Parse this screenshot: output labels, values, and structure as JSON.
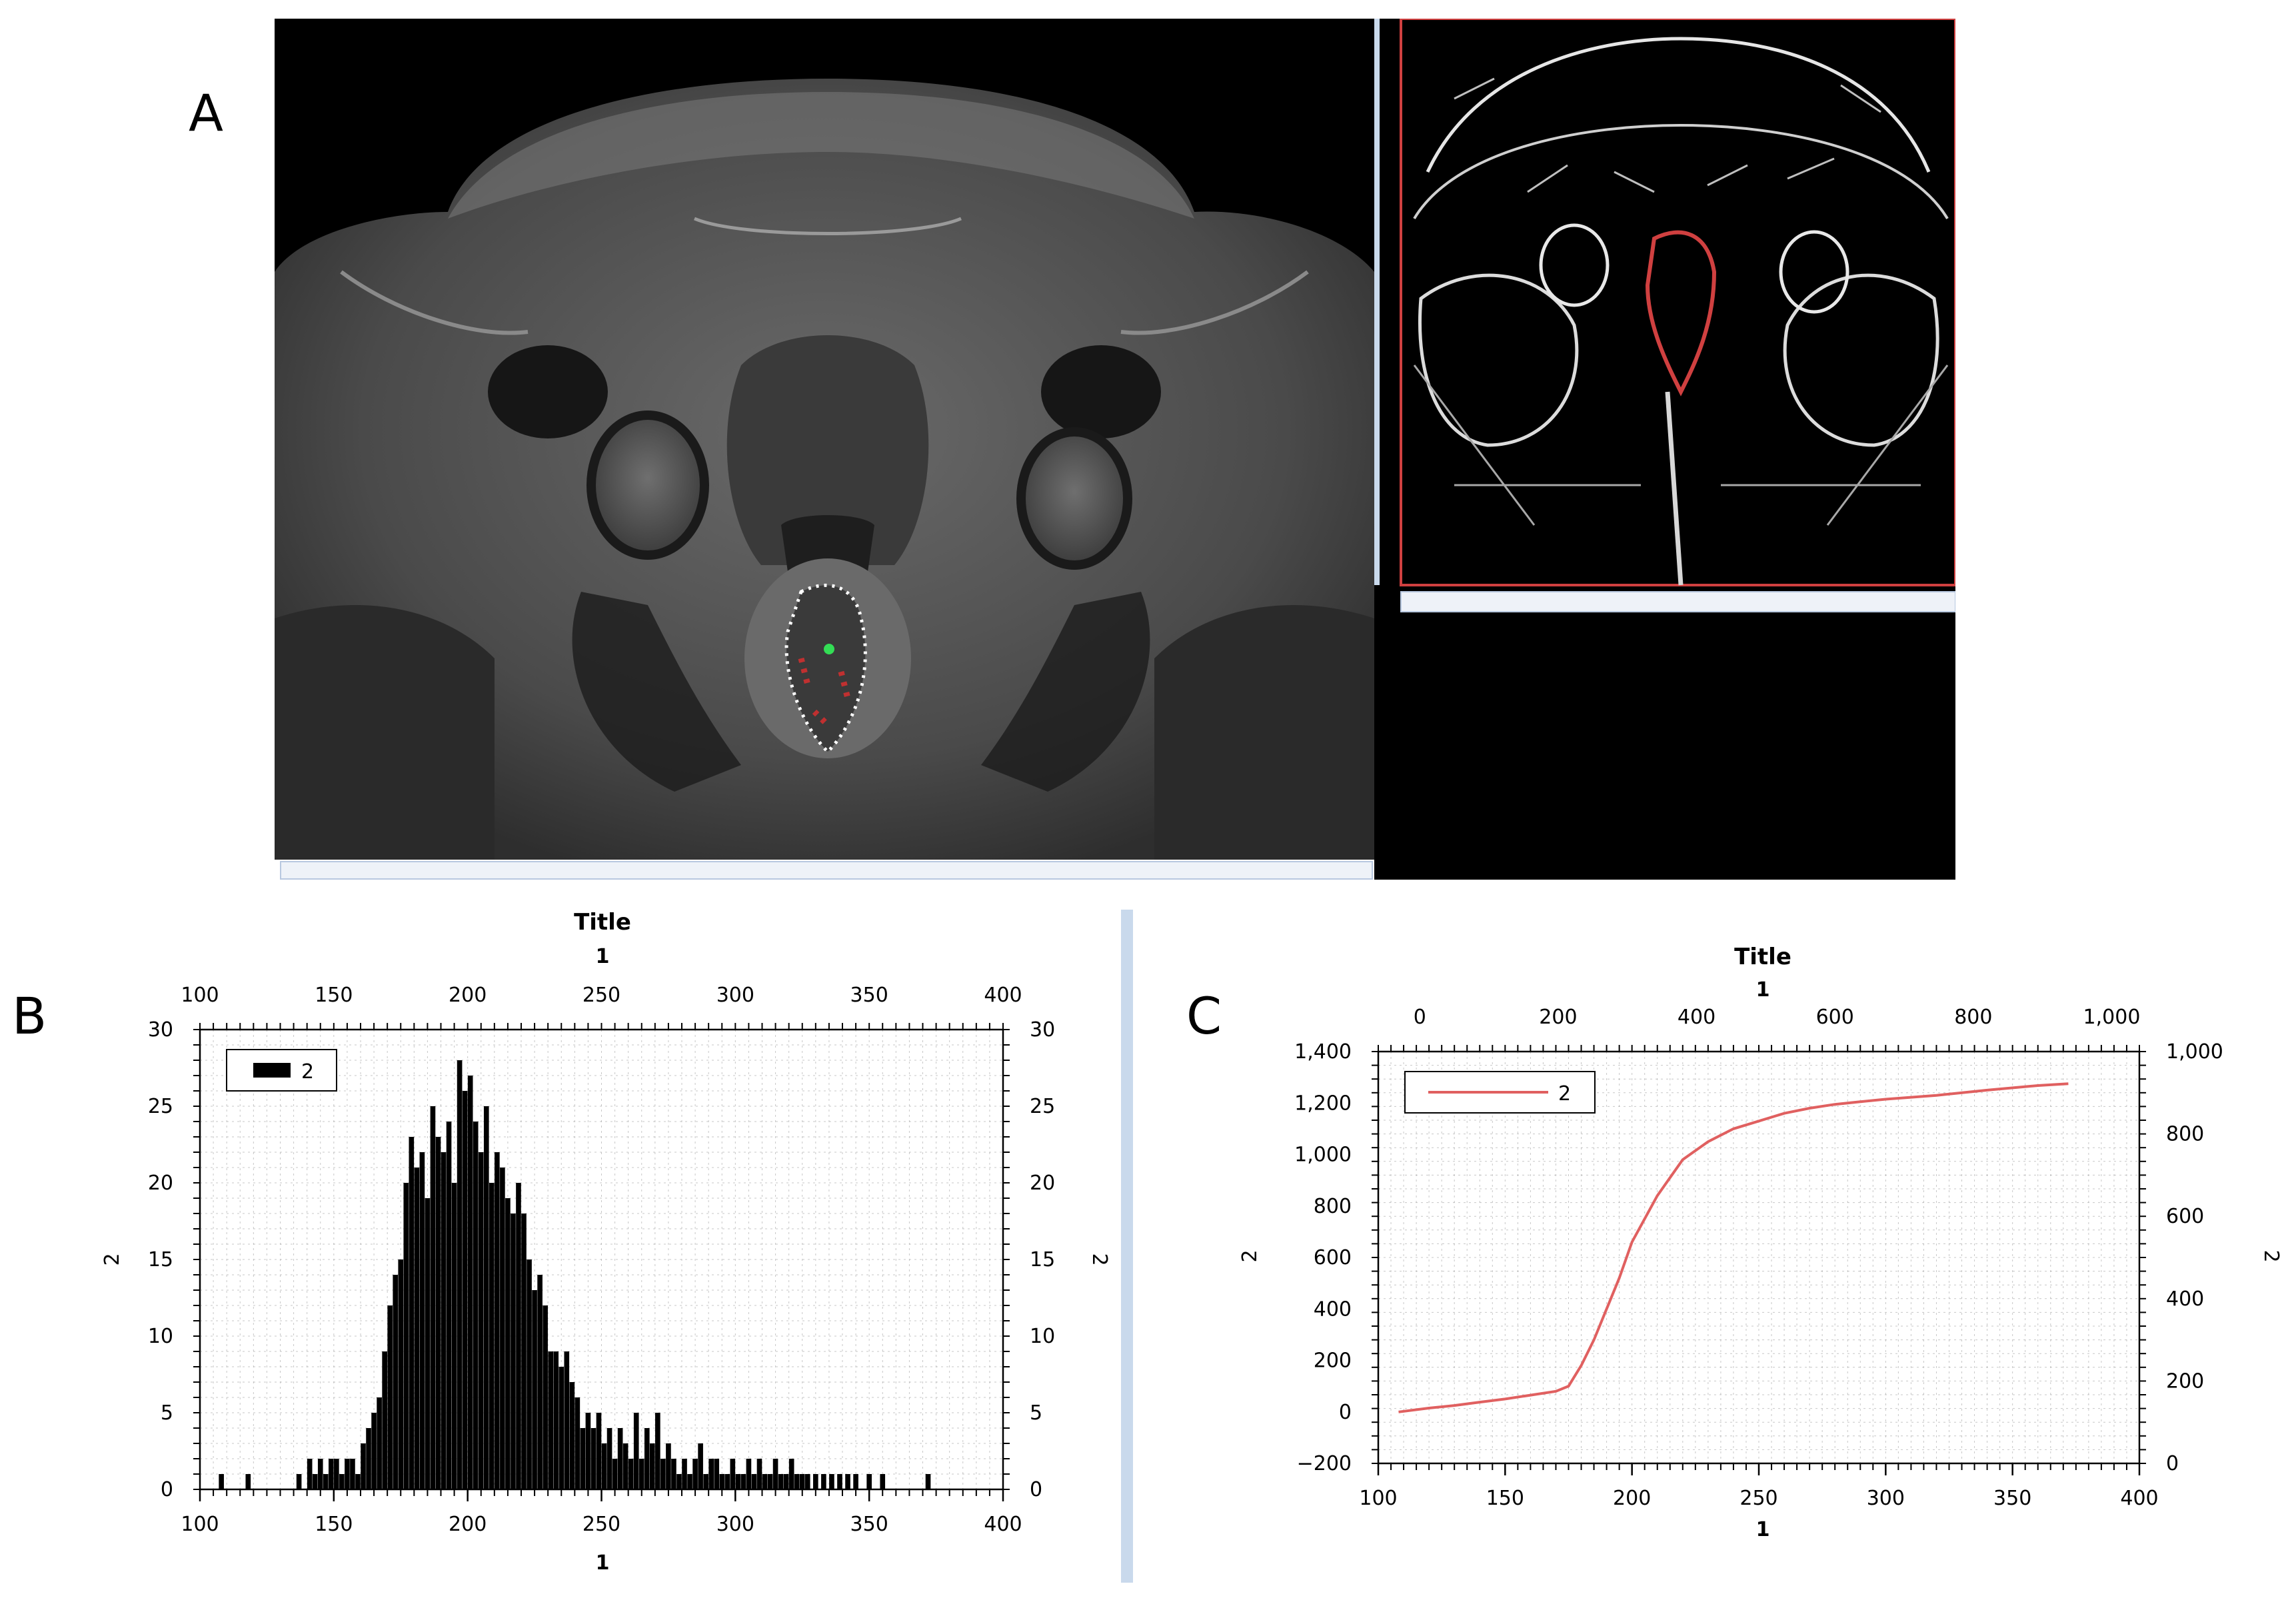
{
  "panels": {
    "a": "A",
    "b": "B",
    "c": "C"
  },
  "colors": {
    "background": "#ffffff",
    "mri_bg": "#000000",
    "bar": "#000000",
    "curve": "#e06060",
    "roi_outline": "#d23030",
    "grid": "#9a9a9a"
  },
  "chart_data": [
    {
      "type": "bar",
      "title": "Title",
      "top_xlabel": "1",
      "xlabel": "1",
      "ylabel": "2",
      "right_ylabel": "2",
      "xlim": [
        100,
        400
      ],
      "ylim": [
        0,
        30
      ],
      "x_ticks": [
        100,
        150,
        200,
        250,
        300,
        350,
        400
      ],
      "y_ticks": [
        0,
        5,
        10,
        15,
        20,
        25,
        30
      ],
      "legend": {
        "label": "2",
        "position": "top-left"
      },
      "grid": true,
      "bin_width": 1,
      "x": [
        108,
        118,
        137,
        141,
        143,
        145,
        147,
        149,
        151,
        153,
        155,
        157,
        159,
        161,
        163,
        165,
        167,
        169,
        171,
        173,
        175,
        177,
        179,
        181,
        183,
        185,
        187,
        189,
        191,
        193,
        195,
        197,
        199,
        201,
        203,
        205,
        207,
        209,
        211,
        213,
        215,
        217,
        219,
        221,
        223,
        225,
        227,
        229,
        231,
        233,
        235,
        237,
        239,
        241,
        243,
        245,
        247,
        249,
        251,
        253,
        255,
        257,
        259,
        261,
        263,
        265,
        267,
        269,
        271,
        273,
        275,
        277,
        279,
        281,
        283,
        285,
        287,
        289,
        291,
        293,
        295,
        297,
        299,
        301,
        303,
        305,
        307,
        309,
        311,
        313,
        315,
        317,
        319,
        321,
        323,
        325,
        327,
        330,
        333,
        336,
        339,
        342,
        345,
        350,
        355,
        372
      ],
      "values": [
        1,
        1,
        1,
        2,
        1,
        2,
        1,
        2,
        2,
        1,
        2,
        2,
        1,
        3,
        4,
        5,
        6,
        9,
        12,
        14,
        15,
        20,
        23,
        21,
        22,
        19,
        25,
        23,
        22,
        24,
        20,
        28,
        26,
        27,
        24,
        22,
        25,
        20,
        22,
        21,
        19,
        18,
        20,
        18,
        15,
        13,
        14,
        12,
        9,
        9,
        8,
        9,
        7,
        6,
        4,
        5,
        4,
        5,
        3,
        4,
        2,
        4,
        3,
        2,
        5,
        2,
        4,
        3,
        5,
        2,
        3,
        2,
        1,
        2,
        1,
        2,
        3,
        1,
        2,
        2,
        1,
        1,
        2,
        1,
        1,
        2,
        1,
        2,
        1,
        1,
        2,
        1,
        1,
        2,
        1,
        1,
        1,
        1,
        1,
        1,
        1,
        1,
        1,
        1,
        1,
        1
      ]
    },
    {
      "type": "line",
      "title": "Title",
      "top_xlabel": "1",
      "xlabel": "1",
      "ylabel": "2",
      "right_ylabel": "2",
      "xlim": [
        100,
        400
      ],
      "ylim": [
        -200,
        1400
      ],
      "x_ticks": [
        100,
        150,
        200,
        250,
        300,
        350,
        400
      ],
      "y_ticks": [
        -200,
        0,
        200,
        400,
        600,
        800,
        1000,
        1200,
        1400
      ],
      "y_tick_labels": [
        "−200",
        "0",
        "200",
        "400",
        "600",
        "800",
        "1,000",
        "1,200",
        "1,400"
      ],
      "top_x_ticks": [
        0,
        200,
        400,
        600,
        800,
        1000
      ],
      "top_x_tick_labels": [
        "0",
        "200",
        "400",
        "600",
        "800",
        "1,000"
      ],
      "top_xlim": [
        -60,
        1040
      ],
      "right_y_ticks": [
        0,
        200,
        400,
        600,
        800,
        1000
      ],
      "right_ylim": [
        0,
        1000
      ],
      "legend": {
        "label": "2",
        "position": "top-left"
      },
      "grid": true,
      "series": [
        {
          "x": [
            108,
            120,
            130,
            140,
            150,
            160,
            170,
            175,
            180,
            185,
            190,
            195,
            200,
            210,
            220,
            230,
            240,
            250,
            260,
            270,
            280,
            290,
            300,
            320,
            340,
            360,
            372
          ],
          "values": [
            0,
            15,
            25,
            38,
            50,
            65,
            80,
            100,
            180,
            280,
            400,
            520,
            660,
            840,
            980,
            1050,
            1100,
            1130,
            1160,
            1180,
            1195,
            1205,
            1215,
            1230,
            1250,
            1268,
            1275
          ]
        }
      ]
    }
  ]
}
